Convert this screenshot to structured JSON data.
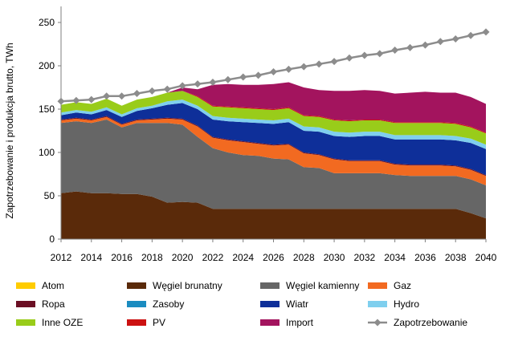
{
  "chart_data": {
    "type": "area",
    "ylabel": "Zapotrzebowanie i produkcja brutto, TWh",
    "xlabel": "",
    "x": [
      2012,
      2013,
      2014,
      2015,
      2016,
      2017,
      2018,
      2019,
      2020,
      2021,
      2022,
      2023,
      2024,
      2025,
      2026,
      2027,
      2028,
      2029,
      2030,
      2031,
      2032,
      2033,
      2034,
      2035,
      2036,
      2037,
      2038,
      2039,
      2040
    ],
    "x_ticks": [
      "2012",
      "2014",
      "2016",
      "2018",
      "2020",
      "2022",
      "2024",
      "2026",
      "2028",
      "2030",
      "2032",
      "2034",
      "2036",
      "2038",
      "2040"
    ],
    "y_ticks": [
      "0",
      "50",
      "100",
      "150",
      "200",
      "250"
    ],
    "ylim": [
      0,
      270
    ],
    "grid": false,
    "legend_position": "bottom",
    "stacked_series": [
      {
        "name": "Węgiel brunatny",
        "color": "#5a2a0a",
        "values": [
          53,
          55,
          53,
          53,
          52,
          52,
          49,
          42,
          43,
          42,
          35,
          35,
          35,
          35,
          35,
          35,
          35,
          35,
          35,
          35,
          35,
          35,
          35,
          35,
          35,
          35,
          35,
          30,
          24
        ]
      },
      {
        "name": "Węgiel kamienny",
        "color": "#666666",
        "values": [
          81,
          81,
          81,
          85,
          77,
          82,
          85,
          92,
          89,
          76,
          70,
          65,
          62,
          61,
          58,
          57,
          48,
          47,
          41,
          41,
          41,
          41,
          39,
          38,
          38,
          38,
          38,
          39,
          38
        ]
      },
      {
        "name": "Gaz",
        "color": "#f26a21",
        "values": [
          3,
          3,
          3,
          3,
          3,
          3,
          4,
          5,
          6,
          12,
          12,
          14,
          15,
          14,
          15,
          17,
          16,
          15,
          16,
          14,
          14,
          14,
          12,
          12,
          12,
          12,
          11,
          11,
          11
        ]
      },
      {
        "name": "Ropa",
        "color": "#6b0f24",
        "values": [
          1,
          1,
          1,
          1,
          1,
          1,
          1,
          1,
          1,
          1,
          1,
          1,
          1,
          1,
          1,
          1,
          1,
          1,
          1,
          1,
          1,
          1,
          1,
          1,
          1,
          1,
          1,
          1,
          1
        ]
      },
      {
        "name": "Zasoby",
        "color": "#1b8cc0",
        "values": [
          0,
          0,
          0,
          0,
          0,
          0,
          0,
          0,
          0,
          0,
          0,
          0,
          0,
          0,
          0,
          0,
          0,
          0,
          0,
          0,
          0,
          0,
          0,
          0,
          0,
          0,
          0,
          0,
          0
        ]
      },
      {
        "name": "Wiatr",
        "color": "#0e2f99",
        "values": [
          5,
          6,
          6,
          7,
          8,
          10,
          12,
          15,
          18,
          19,
          20,
          21,
          22,
          23,
          24,
          25,
          25,
          26,
          26,
          27,
          28,
          28,
          28,
          29,
          29,
          29,
          29,
          30,
          30
        ]
      },
      {
        "name": "Hydro",
        "color": "#7fcfee",
        "values": [
          3,
          3,
          3,
          3,
          3,
          3,
          3,
          4,
          4,
          4,
          4,
          4,
          4,
          4,
          4,
          4,
          5,
          5,
          5,
          5,
          5,
          5,
          5,
          5,
          5,
          5,
          5,
          5,
          5
        ]
      },
      {
        "name": "Inne OZE",
        "color": "#99cc1a",
        "values": [
          9,
          9,
          9,
          10,
          10,
          10,
          10,
          10,
          10,
          10,
          11,
          12,
          12,
          12,
          12,
          12,
          12,
          12,
          13,
          13,
          13,
          13,
          14,
          14,
          14,
          14,
          14,
          13,
          13
        ]
      },
      {
        "name": "PV",
        "color": "#cc1111",
        "values": [
          0,
          0,
          0,
          0,
          0,
          0,
          0,
          0,
          0,
          1,
          1,
          1,
          1,
          1,
          1,
          1,
          1,
          1,
          1,
          1,
          1,
          1,
          1,
          1,
          1,
          1,
          1,
          1,
          1
        ]
      },
      {
        "name": "Import",
        "color": "#a3145e",
        "values": [
          0,
          0,
          0,
          0,
          0,
          0,
          0,
          0,
          4,
          8,
          24,
          26,
          26,
          27,
          29,
          29,
          32,
          30,
          33,
          34,
          34,
          33,
          33,
          34,
          35,
          34,
          35,
          34,
          33
        ]
      },
      {
        "name": "Atom",
        "color": "#ffcc00",
        "values": [
          0,
          0,
          0,
          0,
          0,
          0,
          0,
          0,
          0,
          0,
          0,
          0,
          0,
          0,
          0,
          0,
          0,
          0,
          0,
          0,
          0,
          0,
          0,
          0,
          0,
          0,
          0,
          0,
          0
        ]
      }
    ],
    "line_series": {
      "name": "Zapotrzebowanie",
      "color": "#8c8c8c",
      "values": [
        159,
        160,
        161,
        165,
        165,
        168,
        171,
        173,
        177,
        179,
        181,
        184,
        187,
        189,
        193,
        196,
        199,
        202,
        205,
        209,
        212,
        214,
        218,
        221,
        224,
        228,
        231,
        235,
        239
      ]
    },
    "legend": [
      {
        "name": "Atom",
        "kind": "area",
        "color": "#ffcc00"
      },
      {
        "name": "Węgiel brunatny",
        "kind": "area",
        "color": "#5a2a0a"
      },
      {
        "name": "Węgiel kamienny",
        "kind": "area",
        "color": "#666666"
      },
      {
        "name": "Gaz",
        "kind": "area",
        "color": "#f26a21"
      },
      {
        "name": "Ropa",
        "kind": "area",
        "color": "#6b0f24"
      },
      {
        "name": "Zasoby",
        "kind": "area",
        "color": "#1b8cc0"
      },
      {
        "name": "Wiatr",
        "kind": "area",
        "color": "#0e2f99"
      },
      {
        "name": "Hydro",
        "kind": "area",
        "color": "#7fcfee"
      },
      {
        "name": "Inne OZE",
        "kind": "area",
        "color": "#99cc1a"
      },
      {
        "name": "PV",
        "kind": "area",
        "color": "#cc1111"
      },
      {
        "name": "Import",
        "kind": "area",
        "color": "#a3145e"
      },
      {
        "name": "Zapotrzebowanie",
        "kind": "line",
        "color": "#8c8c8c"
      }
    ]
  }
}
